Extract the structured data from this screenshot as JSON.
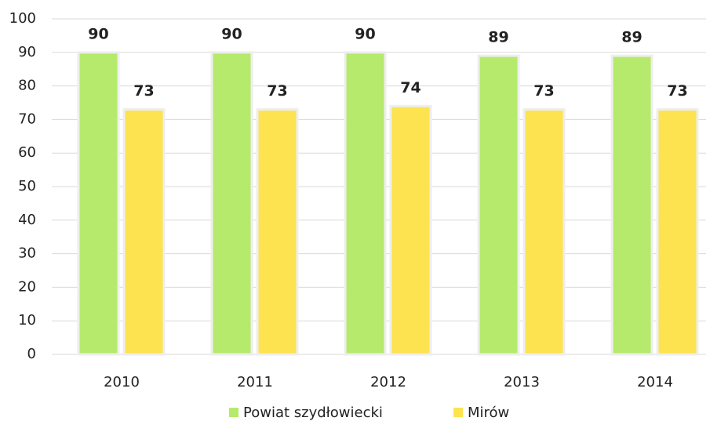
{
  "chart_data": {
    "type": "bar",
    "categories": [
      "2010",
      "2011",
      "2012",
      "2013",
      "2014"
    ],
    "series": [
      {
        "name": "Powiat szydłowiecki",
        "color": "#b5ea6c",
        "values": [
          90,
          90,
          90,
          89,
          89
        ]
      },
      {
        "name": "Mirów",
        "color": "#fde34f",
        "values": [
          73,
          73,
          74,
          73,
          73
        ]
      }
    ],
    "ylim": [
      0,
      100
    ],
    "yticks": [
      0,
      10,
      20,
      30,
      40,
      50,
      60,
      70,
      80,
      90,
      100
    ],
    "grid": true,
    "legend": "bottom"
  }
}
